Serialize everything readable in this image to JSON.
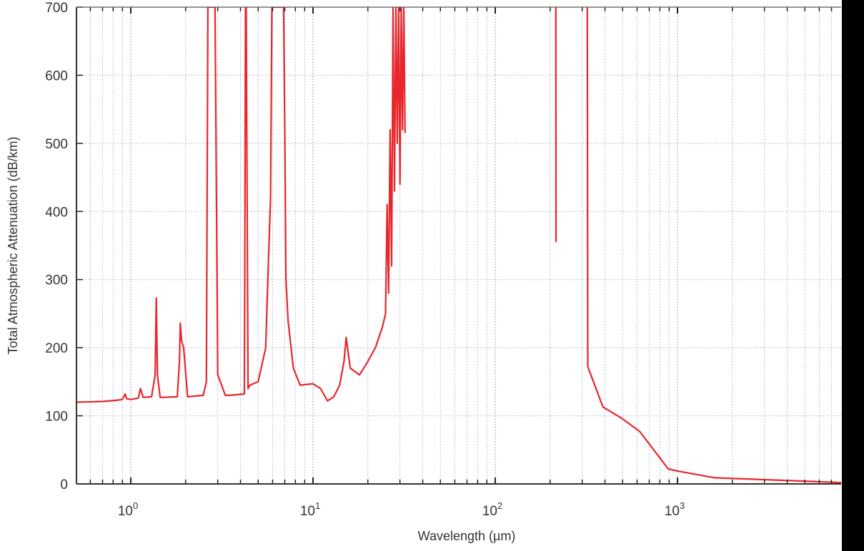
{
  "chart_data": {
    "type": "line",
    "title": "",
    "xlabel": "Wavelength (µm)",
    "ylabel": "Total Atmospheric Attenuation (dB/km)",
    "xscale": "log",
    "xlim": [
      0.5,
      7900
    ],
    "ylim": [
      0,
      700
    ],
    "grid": true,
    "legend": "none",
    "yticks": [
      "0",
      "100",
      "200",
      "300",
      "400",
      "500",
      "600",
      "700"
    ],
    "xticks": [
      {
        "base": "10",
        "exp": "0"
      },
      {
        "base": "10",
        "exp": "1"
      },
      {
        "base": "10",
        "exp": "2"
      },
      {
        "base": "10",
        "exp": "3"
      }
    ],
    "line_color": "#e8262b",
    "series": [
      {
        "segments": [
          {
            "x": [
              0.5,
              0.7,
              0.85,
              0.9,
              0.93,
              0.95,
              1.0,
              1.1,
              1.13,
              1.17,
              1.3,
              1.36,
              1.38,
              1.4,
              1.45,
              1.8,
              1.85,
              1.87,
              1.9,
              1.95,
              2.05,
              2.5,
              2.6,
              2.65,
              2.7,
              2.8,
              2.9,
              3.0,
              3.1,
              3.2,
              3.3,
              3.5,
              4.2,
              4.22,
              4.26,
              4.3,
              4.4,
              4.5,
              5.0,
              5.5,
              5.7,
              5.85,
              5.95,
              6.0,
              6.3,
              6.8,
              6.9,
              7.0,
              7.1,
              7.3,
              7.8,
              8.5,
              10.0,
              11.0,
              12.0,
              13.0,
              14.0,
              14.8,
              15.2,
              16.0,
              18.0,
              20.0,
              22.0,
              24.0,
              25.0,
              25.5,
              26.0,
              26.5,
              27.0,
              27.5,
              28.0,
              28.5,
              29.0,
              29.5,
              30.0,
              30.5,
              31.0,
              31.5,
              32.0
            ],
            "y": [
              120,
              121,
              123,
              124,
              132,
              125,
              124,
              126,
              140,
              127,
              128,
              160,
              273,
              160,
              127,
              128,
              180,
              236,
              210,
              200,
              128,
              130,
              150,
              700,
              700,
              700,
              700,
              160,
              150,
              140,
              130,
              130,
              132,
              300,
              700,
              700,
              140,
              145,
              150,
              200,
              330,
              420,
              700,
              700,
              700,
              700,
              700,
              520,
              300,
              240,
              170,
              145,
              147,
              140,
              122,
              128,
              145,
              180,
              215,
              170,
              160,
              180,
              200,
              230,
              250,
              410,
              280,
              520,
              320,
              700,
              430,
              700,
              500,
              700,
              440,
              700,
              520,
              700,
              515
            ]
          },
          {
            "x": [
              215,
              215.5
            ],
            "y": [
              700,
              355
            ]
          },
          {
            "x": [
              320,
              322,
              390,
              490,
              620,
              890,
              1000,
              1600,
              7900
            ],
            "y": [
              700,
              172,
              113,
              97,
              77,
              22,
              19,
              9,
              2
            ]
          }
        ]
      }
    ]
  }
}
